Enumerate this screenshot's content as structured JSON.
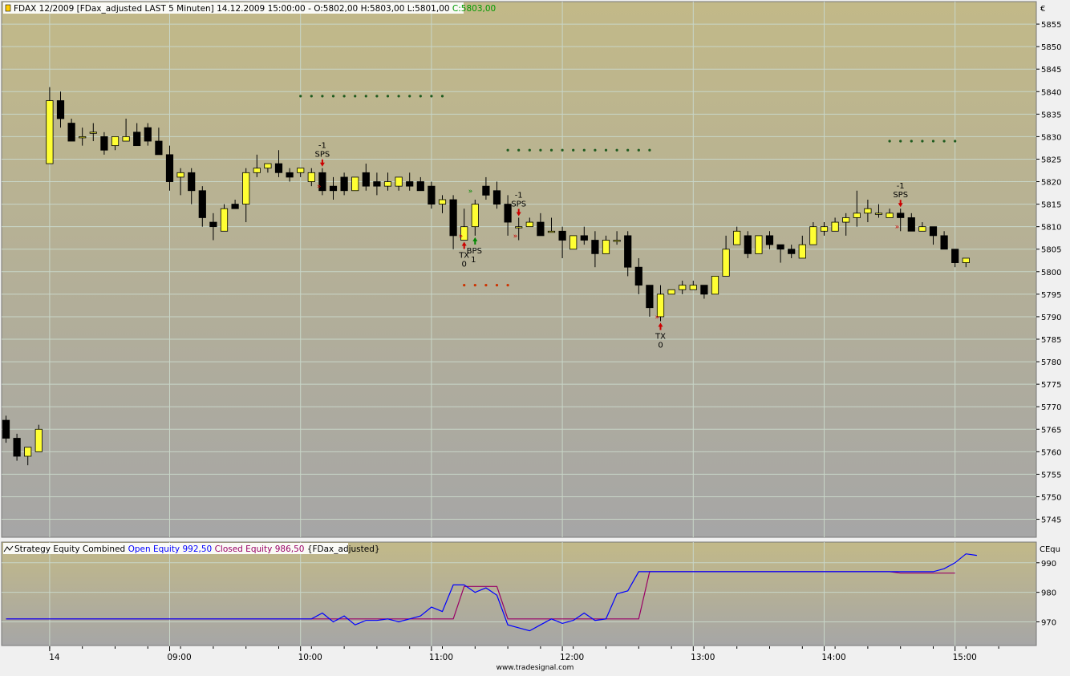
{
  "main_pane": {
    "header_prefix": "FDAX 12/2009 [FDax_adjusted LAST 5 Minuten] 14.12.2009 15:00:00 - O:5802,00 H:5803,00 L:5801,00 ",
    "header_close": "C:5803,00",
    "currency": "€"
  },
  "equity_pane": {
    "header_name": "Strategy Equity Combined ",
    "open_label": "Open Equity 992,50",
    "closed_label": "Closed Equity 986,50",
    "symbol_label": "{FDax_adjusted}",
    "axis_title": "CEqu",
    "open_color": "#0000ff",
    "closed_color": "#990066"
  },
  "watermark": "www.tradesignal.com",
  "colors": {
    "bg_top": "#c2b988",
    "bg_bottom": "#a6a6a6",
    "bull": "#ffff33",
    "bear": "#000000",
    "stop_green": "#1e5a1e",
    "stop_red": "#cc3300",
    "signal_red": "#cc0000",
    "signal_green": "#008800"
  },
  "chart_data": [
    {
      "type": "candlestick",
      "symbol": "FDAX 12/2009",
      "ylim": [
        5741,
        5860
      ],
      "yticks": [
        5745,
        5750,
        5755,
        5760,
        5765,
        5770,
        5775,
        5780,
        5785,
        5790,
        5795,
        5800,
        5805,
        5810,
        5815,
        5820,
        5825,
        5830,
        5835,
        5840,
        5845,
        5850,
        5855
      ],
      "xticks": [
        {
          "i": 4,
          "label": "14"
        },
        {
          "i": 15,
          "label": "09:00"
        },
        {
          "i": 27,
          "label": "10:00"
        },
        {
          "i": 39,
          "label": "11:00"
        },
        {
          "i": 51,
          "label": "12:00"
        },
        {
          "i": 63,
          "label": "13:00"
        },
        {
          "i": 75,
          "label": "14:00"
        },
        {
          "i": 87,
          "label": "15:00"
        }
      ],
      "bars": [
        [
          5767,
          5768,
          5762,
          5763
        ],
        [
          5763,
          5764,
          5758,
          5759
        ],
        [
          5759,
          5761,
          5757,
          5761
        ],
        [
          5760,
          5766,
          5760,
          5765
        ],
        [
          5824,
          5841,
          5824,
          5838
        ],
        [
          5838,
          5840,
          5832,
          5834
        ],
        [
          5833,
          5834,
          5829,
          5829
        ],
        [
          5830,
          5832,
          5828,
          5830
        ],
        [
          5831,
          5833,
          5829,
          5831
        ],
        [
          5830,
          5831,
          5826,
          5827
        ],
        [
          5828,
          5830,
          5827,
          5830
        ],
        [
          5829,
          5834,
          5829,
          5830
        ],
        [
          5831,
          5833,
          5828,
          5828
        ],
        [
          5832,
          5833,
          5828,
          5829
        ],
        [
          5829,
          5832,
          5826,
          5826
        ],
        [
          5826,
          5828,
          5818,
          5820
        ],
        [
          5821,
          5823,
          5817,
          5822
        ],
        [
          5822,
          5823,
          5815,
          5818
        ],
        [
          5818,
          5819,
          5810,
          5812
        ],
        [
          5811,
          5813,
          5807,
          5810
        ],
        [
          5809,
          5815,
          5809,
          5814
        ],
        [
          5815,
          5816,
          5814,
          5814
        ],
        [
          5815,
          5823,
          5811,
          5822
        ],
        [
          5822,
          5826,
          5821,
          5823
        ],
        [
          5823,
          5824,
          5822,
          5824
        ],
        [
          5824,
          5827,
          5821,
          5822
        ],
        [
          5822,
          5823,
          5820,
          5821
        ],
        [
          5822,
          5823,
          5821,
          5823
        ],
        [
          5820,
          5823,
          5819,
          5822
        ],
        [
          5822,
          5823,
          5817,
          5818
        ],
        [
          5819,
          5821,
          5816,
          5818
        ],
        [
          5821,
          5822,
          5817,
          5818
        ],
        [
          5818,
          5821,
          5818,
          5821
        ],
        [
          5822,
          5824,
          5818,
          5819
        ],
        [
          5820,
          5822,
          5817,
          5819
        ],
        [
          5819,
          5822,
          5818,
          5820
        ],
        [
          5819,
          5821,
          5818,
          5821
        ],
        [
          5820,
          5822,
          5818,
          5819
        ],
        [
          5820,
          5821,
          5818,
          5818
        ],
        [
          5819,
          5820,
          5814,
          5815
        ],
        [
          5815,
          5817,
          5813,
          5816
        ],
        [
          5816,
          5817,
          5805,
          5808
        ],
        [
          5807,
          5814,
          5807,
          5810
        ],
        [
          5810,
          5816,
          5808,
          5815
        ],
        [
          5819,
          5821,
          5816,
          5817
        ],
        [
          5818,
          5820,
          5814,
          5815
        ],
        [
          5815,
          5817,
          5808,
          5811
        ],
        [
          5810,
          5812,
          5807,
          5810
        ],
        [
          5810,
          5812,
          5810,
          5811
        ],
        [
          5811,
          5813,
          5808,
          5808
        ],
        [
          5809,
          5812,
          5809,
          5809
        ],
        [
          5809,
          5810,
          5803,
          5807
        ],
        [
          5805,
          5808,
          5805,
          5808
        ],
        [
          5808,
          5810,
          5806,
          5807
        ],
        [
          5807,
          5809,
          5801,
          5804
        ],
        [
          5804,
          5808,
          5804,
          5807
        ],
        [
          5807,
          5809,
          5806,
          5807
        ],
        [
          5808,
          5809,
          5799,
          5801
        ],
        [
          5801,
          5803,
          5795,
          5797
        ],
        [
          5797,
          5797,
          5790,
          5792
        ],
        [
          5790,
          5797,
          5789,
          5795
        ],
        [
          5795,
          5796,
          5795,
          5796
        ],
        [
          5796,
          5798,
          5795,
          5797
        ],
        [
          5796,
          5798,
          5796,
          5797
        ],
        [
          5797,
          5797,
          5794,
          5795
        ],
        [
          5795,
          5799,
          5795,
          5799
        ],
        [
          5799,
          5808,
          5799,
          5805
        ],
        [
          5806,
          5810,
          5806,
          5809
        ],
        [
          5808,
          5809,
          5803,
          5804
        ],
        [
          5804,
          5808,
          5804,
          5808
        ],
        [
          5808,
          5809,
          5805,
          5806
        ],
        [
          5806,
          5806,
          5802,
          5805
        ],
        [
          5805,
          5806,
          5803,
          5804
        ],
        [
          5803,
          5808,
          5803,
          5806
        ],
        [
          5806,
          5811,
          5806,
          5810
        ],
        [
          5809,
          5811,
          5808,
          5810
        ],
        [
          5809,
          5812,
          5809,
          5811
        ],
        [
          5811,
          5813,
          5808,
          5812
        ],
        [
          5812,
          5818,
          5810,
          5813
        ],
        [
          5813,
          5816,
          5811,
          5814
        ],
        [
          5813,
          5815,
          5812,
          5813
        ],
        [
          5812,
          5814,
          5812,
          5813
        ],
        [
          5813,
          5814,
          5809,
          5812
        ],
        [
          5812,
          5813,
          5809,
          5809
        ],
        [
          5809,
          5811,
          5809,
          5810
        ],
        [
          5810,
          5810,
          5806,
          5808
        ],
        [
          5808,
          5809,
          5805,
          5805
        ],
        [
          5805,
          5805,
          5801,
          5802
        ],
        [
          5802,
          5803,
          5801,
          5803
        ]
      ],
      "stops_green": [
        {
          "from": 27,
          "to": 40,
          "y": 5839
        },
        {
          "from": 46,
          "to": 59,
          "y": 5827
        },
        {
          "from": 81,
          "to": 87,
          "y": 5829
        }
      ],
      "stops_red": [
        {
          "from": 42,
          "to": 46,
          "y": 5797
        }
      ],
      "signals": [
        {
          "i": 29,
          "dir": "down",
          "name": "SPS",
          "qty": "-1"
        },
        {
          "i": 42,
          "dir": "up",
          "name": "TX",
          "qty": "0"
        },
        {
          "i": 43,
          "dir": "up",
          "name": "BPS",
          "qty": "1"
        },
        {
          "i": 47,
          "dir": "down",
          "name": "SPS",
          "qty": "-1"
        },
        {
          "i": 60,
          "dir": "up",
          "name": "TX",
          "qty": "0"
        },
        {
          "i": 82,
          "dir": "down",
          "name": "SPS",
          "qty": "-1"
        }
      ],
      "markers_red": [
        {
          "i": 29,
          "y": 5819
        },
        {
          "i": 42,
          "y": 5808
        },
        {
          "i": 47,
          "y": 5808
        },
        {
          "i": 60,
          "y": 5790
        },
        {
          "i": 82,
          "y": 5810
        }
      ],
      "markers_green": [
        {
          "i": 42,
          "y": 5818
        }
      ]
    },
    {
      "type": "line",
      "title": "Strategy Equity Combined",
      "ylim": [
        962,
        997
      ],
      "yticks": [
        970,
        980,
        990
      ],
      "series": [
        {
          "name": "Open Equity",
          "last": 992.5,
          "values": [
            971,
            971,
            971,
            971,
            971,
            971,
            971,
            971,
            971,
            971,
            971,
            971,
            971,
            971,
            971,
            971,
            971,
            971,
            971,
            971,
            971,
            971,
            971,
            971,
            971,
            971,
            971,
            971,
            971,
            973,
            970,
            972,
            969,
            970.5,
            970.5,
            971,
            970,
            971,
            972,
            975,
            973.5,
            982.5,
            982.5,
            980,
            981.5,
            979,
            969,
            968,
            967,
            969,
            971,
            969.5,
            970.5,
            973,
            970.5,
            971,
            979.5,
            980.5,
            987,
            987,
            987,
            987,
            987,
            987,
            987,
            987,
            987,
            987,
            987,
            987,
            987,
            987,
            987,
            987,
            987,
            987,
            987,
            987,
            987,
            987,
            987,
            987,
            987,
            987,
            987,
            987,
            988,
            990,
            993,
            992.5
          ]
        },
        {
          "name": "Closed Equity",
          "last": 986.5,
          "values": [
            971,
            971,
            971,
            971,
            971,
            971,
            971,
            971,
            971,
            971,
            971,
            971,
            971,
            971,
            971,
            971,
            971,
            971,
            971,
            971,
            971,
            971,
            971,
            971,
            971,
            971,
            971,
            971,
            971,
            971,
            971,
            971,
            971,
            971,
            971,
            971,
            971,
            971,
            971,
            971,
            971,
            971,
            982,
            982,
            982,
            982,
            971,
            971,
            971,
            971,
            971,
            971,
            971,
            971,
            971,
            971,
            971,
            971,
            971,
            987,
            987,
            987,
            987,
            987,
            987,
            987,
            987,
            987,
            987,
            987,
            987,
            987,
            987,
            987,
            987,
            987,
            987,
            987,
            987,
            987,
            987,
            987,
            986.5,
            986.5,
            986.5,
            986.5,
            986.5,
            986.5
          ]
        }
      ]
    }
  ]
}
